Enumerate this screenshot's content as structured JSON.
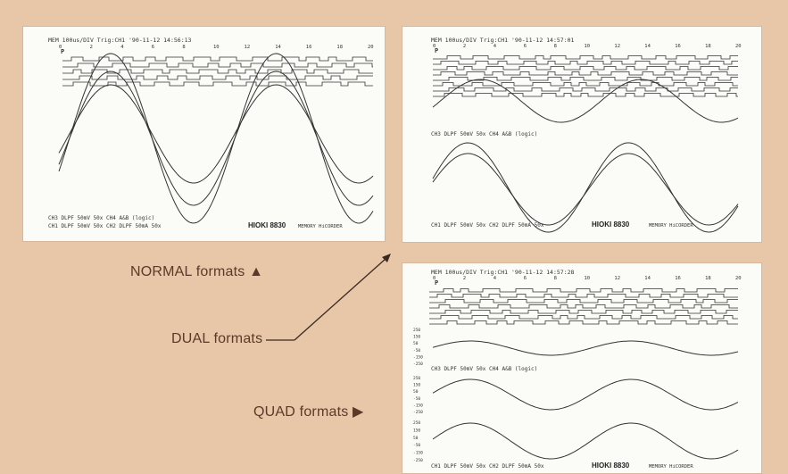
{
  "captions": {
    "normal": "NORMAL formats ▲",
    "dual": "DUAL formats",
    "quad": "QUAD formats ▶"
  },
  "panel_normal": {
    "header": "MEM  100us/DIV Trig:CH1 '90-11-12 14:56:13",
    "footer1": "CH3 DLPF  50mV   50x  CH4 A&B (logic)",
    "footer2": "CH1 DLPF  50mV   50x  CH2 DLPF  50mA   50x",
    "brand": "HIOKI 8830",
    "brand_sub": "MEMORY HiCORDER"
  },
  "panel_dual": {
    "header": "MEM  100us/DIV Trig:CH1 '90-11-12 14:57:01",
    "mid_label": "CH3 DLPF  50mV   50x  CH4 A&B (logic)",
    "footer": "CH1 DLPF  50mV   50x  CH2 DLPF  50mA   50x",
    "brand": "HIOKI 8830",
    "brand_sub": "MEMORY HiCORDER"
  },
  "panel_quad": {
    "header": "MEM  100us/DIV Trig:CH1 '90-11-12 14:57:28",
    "mid_label": "CH3 DLPF  50mV   50x  CH4 A&B (logic)",
    "footer": "CH1 DLPF  50mV   50x  CH2 DLPF  50mA   50x",
    "brand": "HIOKI 8830",
    "brand_sub": "MEMORY HiCORDER"
  },
  "axis_ticks": [
    "0",
    "2",
    "4",
    "6",
    "8",
    "10",
    "12",
    "14",
    "16",
    "18",
    "20"
  ],
  "trigger_marker": "P",
  "colors": {
    "background": "#e8c6a8",
    "trace": "#333333",
    "caption": "#5a3a2a"
  }
}
